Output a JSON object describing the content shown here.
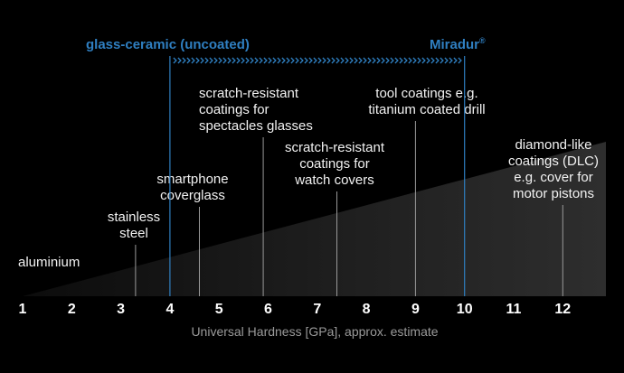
{
  "chart_data": {
    "type": "scatter",
    "xlabel": "Universal Hardness [GPa], approx. estimate",
    "xlim": [
      1,
      12.9
    ],
    "ticks": [
      1,
      2,
      3,
      4,
      5,
      6,
      7,
      8,
      9,
      10,
      11,
      12
    ],
    "annotations": [
      {
        "lines": [
          "aluminium"
        ],
        "x": 1.0,
        "align": "start"
      },
      {
        "lines": [
          "stainless",
          "steel"
        ],
        "x": 3.3,
        "align": "middle"
      },
      {
        "lines": [
          "smartphone",
          "coverglass"
        ],
        "x": 4.6,
        "align": "middle"
      },
      {
        "lines": [
          "scratch-resistant",
          "coatings for",
          "spectacles glasses"
        ],
        "x": 5.9,
        "align": "start"
      },
      {
        "lines": [
          "scratch-resistant",
          "coatings for",
          "watch covers"
        ],
        "x": 7.4,
        "align": "middle"
      },
      {
        "lines": [
          "tool coatings e.g.",
          "titanium coated drill"
        ],
        "x": 9.0,
        "align": "middle"
      },
      {
        "lines": [
          "diamond-like",
          "coatings (DLC)",
          "e.g. cover for",
          "motor pistons"
        ],
        "x": 12.0,
        "align": "middle"
      }
    ],
    "range_markers": {
      "start_label": "glass-ceramic (uncoated)",
      "end_label": "Miradur",
      "end_label_sup": "®",
      "start_x": 4.0,
      "end_x": 10.0,
      "color": "#2f7fc1"
    },
    "grid": false
  }
}
